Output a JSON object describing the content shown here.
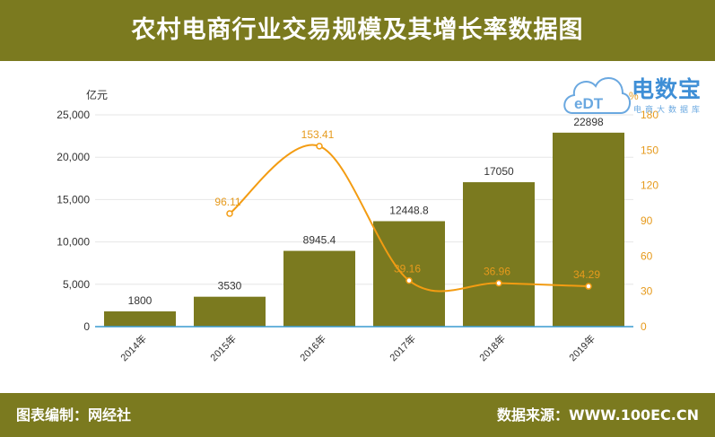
{
  "header": {
    "title": "农村电商行业交易规模及其增长率数据图"
  },
  "footer": {
    "left": "图表编制：网经社",
    "right": "数据来源：WWW.100EC.CN"
  },
  "logo": {
    "brand": "电数宝",
    "subtitle": "电商大数据库",
    "icon": "cloud-edt-logo-icon",
    "color": "#3f8fd6"
  },
  "chart_data": {
    "type": "bar",
    "categories": [
      "2014年",
      "2015年",
      "2016年",
      "2017年",
      "2018年",
      "2019年"
    ],
    "series": [
      {
        "values": [
          1800,
          3530,
          8945.4,
          12448.8,
          17050,
          22898
        ],
        "labels": [
          "1800",
          "3530",
          "8945.4",
          "12448.8",
          "17050",
          "22898"
        ],
        "color": "#7b7a1f",
        "axis": "left"
      },
      {
        "type": "line",
        "values": [
          null,
          96.11,
          153.41,
          39.16,
          36.96,
          34.29
        ],
        "labels": [
          "",
          "96.11",
          "153.41",
          "39.16",
          "36.96",
          "34.29"
        ],
        "color": "#f39c12",
        "axis": "right",
        "smooth": true
      }
    ],
    "ylabel": "亿元",
    "ylim": [
      0,
      25000
    ],
    "yticks": [
      "0",
      "5,000",
      "10,000",
      "15,000",
      "20,000",
      "25,000"
    ],
    "y2label": "%",
    "y2lim": [
      0,
      180
    ],
    "y2ticks": [
      "0",
      "30",
      "60",
      "90",
      "120",
      "150",
      "180"
    ],
    "grid": true
  }
}
